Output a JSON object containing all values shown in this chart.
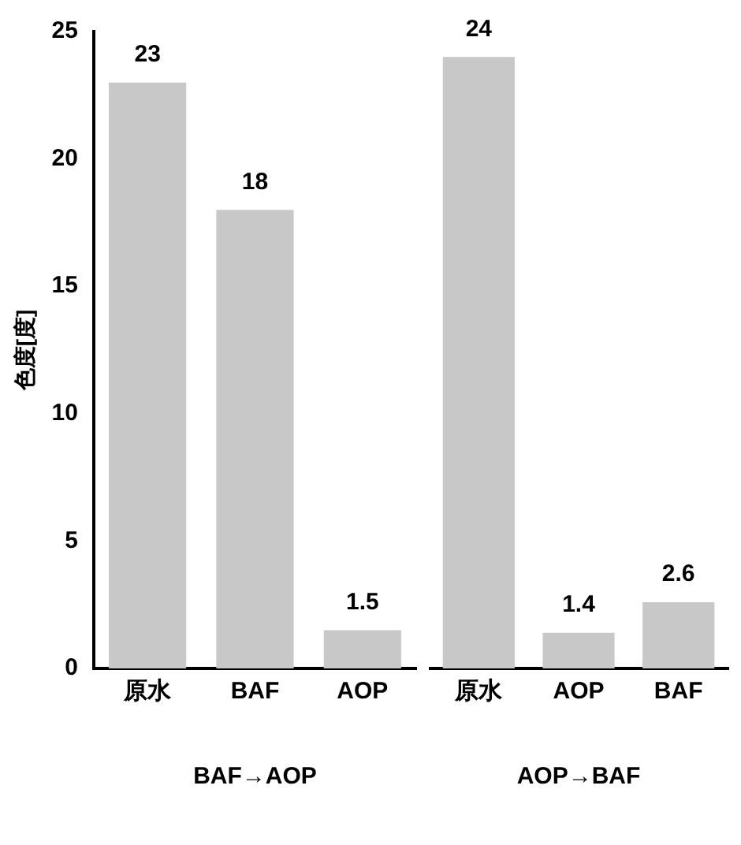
{
  "chart_data": [
    {
      "type": "bar",
      "ylabel": "色度[度]",
      "xlabel": "BAF→AOP",
      "categories": [
        "原水",
        "BAF",
        "AOP"
      ],
      "values": [
        23,
        18,
        1.5
      ],
      "color": "#c8c8c8",
      "ylim": [
        0,
        25
      ],
      "yticks": [
        0,
        5,
        10,
        15,
        20,
        25
      ],
      "data_labels": true,
      "grid": false,
      "legend": false
    },
    {
      "type": "bar",
      "xlabel": "AOP→BAF",
      "categories": [
        "原水",
        "AOP",
        "BAF"
      ],
      "values": [
        24,
        1.4,
        2.6
      ],
      "color": "#c8c8c8",
      "ylim": [
        0,
        25
      ],
      "yticks": [
        0,
        5,
        10,
        15,
        20,
        25
      ],
      "data_labels": true,
      "grid": false,
      "legend": false,
      "tick_labels": "x"
    }
  ]
}
